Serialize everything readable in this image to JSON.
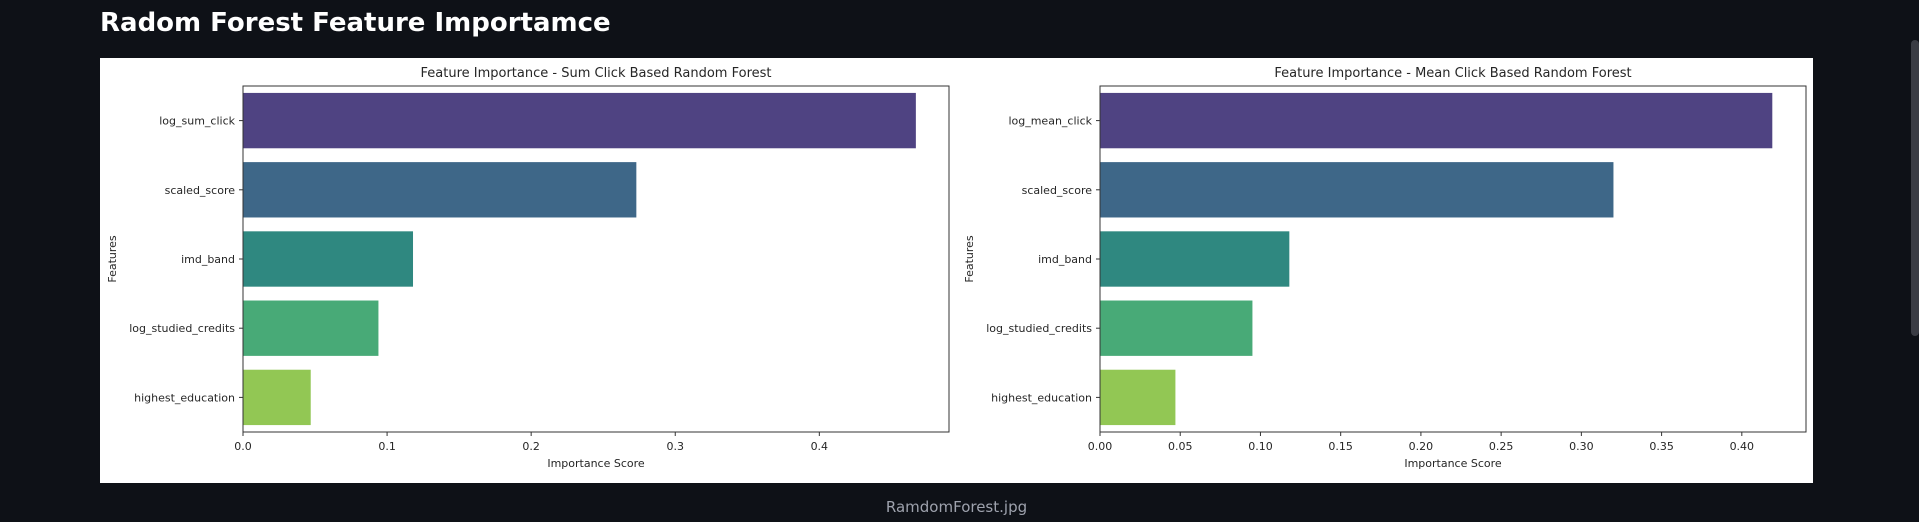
{
  "page": {
    "title": "Radom Forest Feature Importamce",
    "caption": "RamdomForest.jpg"
  },
  "chart_data": [
    {
      "type": "bar",
      "orientation": "horizontal",
      "title": "Feature Importance - Sum Click Based Random Forest",
      "xlabel": "Importance Score",
      "ylabel": "Features",
      "categories": [
        "log_sum_click",
        "scaled_score",
        "imd_band",
        "log_studied_credits",
        "highest_education"
      ],
      "values": [
        0.467,
        0.273,
        0.118,
        0.094,
        0.047
      ],
      "xlim": [
        0,
        0.49
      ],
      "xticks": [
        0,
        0.1,
        0.2,
        0.3,
        0.4
      ],
      "xtick_labels": [
        "0.0",
        "0.1",
        "0.2",
        "0.3",
        "0.4"
      ],
      "colors": [
        "#4f4382",
        "#3e6788",
        "#2f8880",
        "#48aa77",
        "#92c754"
      ],
      "grid": false
    },
    {
      "type": "bar",
      "orientation": "horizontal",
      "title": "Feature Importance - Mean Click Based Random Forest",
      "xlabel": "Importance Score",
      "ylabel": "Features",
      "categories": [
        "log_mean_click",
        "scaled_score",
        "imd_band",
        "log_studied_credits",
        "highest_education"
      ],
      "values": [
        0.419,
        0.32,
        0.118,
        0.095,
        0.047
      ],
      "xlim": [
        0,
        0.44
      ],
      "xticks": [
        0,
        0.05,
        0.1,
        0.15,
        0.2,
        0.25,
        0.3,
        0.35,
        0.4
      ],
      "xtick_labels": [
        "0.00",
        "0.05",
        "0.10",
        "0.15",
        "0.20",
        "0.25",
        "0.30",
        "0.35",
        "0.40"
      ],
      "colors": [
        "#4f4382",
        "#3e6788",
        "#2f8880",
        "#48aa77",
        "#92c754"
      ],
      "grid": false
    }
  ]
}
